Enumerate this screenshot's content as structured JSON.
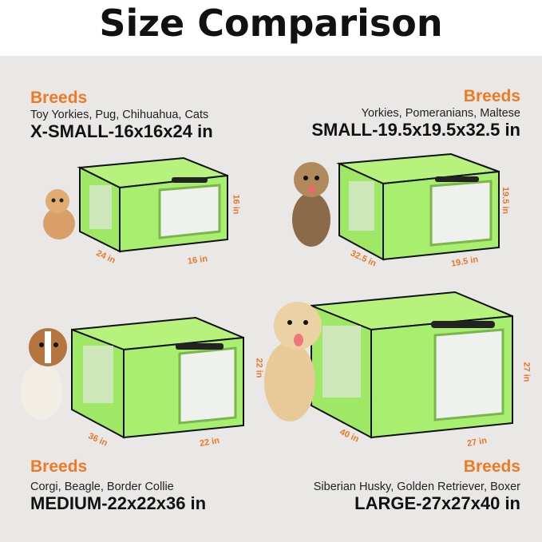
{
  "title": "Size Comparison",
  "crate_color": "#a9ef6f",
  "accent": "#ee7a23",
  "sizes": [
    {
      "heading": "Breeds",
      "breeds": "Toy Yorkies, Pug, Chihuahua, Cats",
      "size": "X-SMALL-16x16x24 in",
      "dims": {
        "height": "16 in",
        "length": "24 in",
        "width": "16 in"
      },
      "pet": "kitten"
    },
    {
      "heading": "Breeds",
      "breeds": "Yorkies, Pomeranians, Maltese",
      "size": "SMALL-19.5x19.5x32.5 in",
      "dims": {
        "height": "19.5 in",
        "length": "32.5 in",
        "width": "19.5 in"
      },
      "pet": "yorkie"
    },
    {
      "heading": "Breeds",
      "breeds": "Corgi, Beagle, Border Collie",
      "size": "MEDIUM-22x22x36 in",
      "dims": {
        "height": "22 in",
        "length": "36 in",
        "width": "22 in"
      },
      "pet": "beagle"
    },
    {
      "heading": "Breeds",
      "breeds": "Siberian Husky, Golden Retriever, Boxer",
      "size": "LARGE-27x27x40 in",
      "dims": {
        "height": "27 in",
        "length": "40 in",
        "width": "27 in"
      },
      "pet": "golden-retriever"
    }
  ]
}
